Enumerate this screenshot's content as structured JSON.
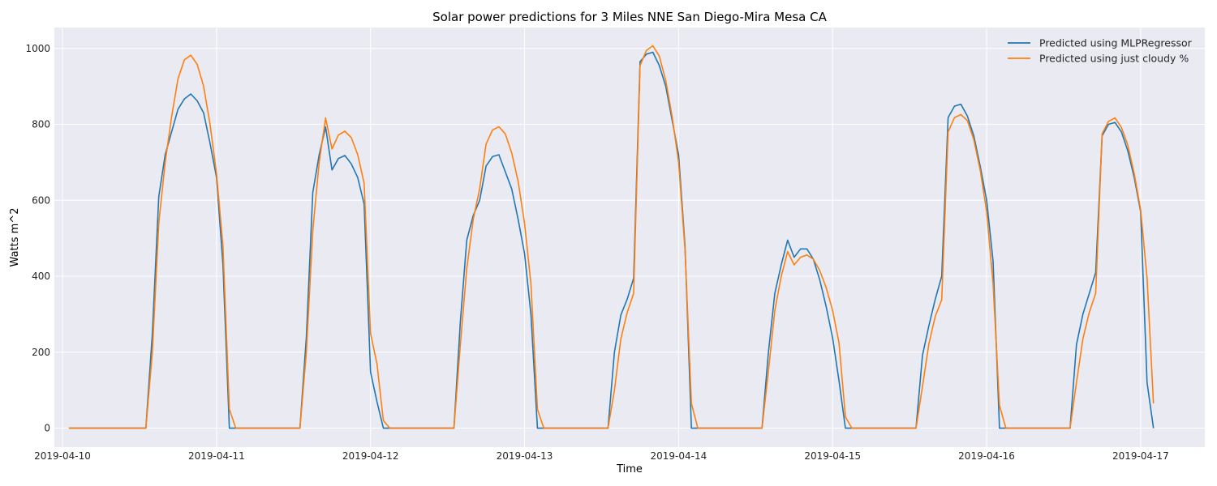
{
  "chart_data": {
    "type": "line",
    "title": "Solar power predictions for 3 Miles NNE San Diego-Mira Mesa CA",
    "xlabel": "Time",
    "ylabel": "Watts m^2",
    "xlim": [
      "2019-04-09T22:44",
      "2019-04-17T10:00"
    ],
    "ylim": [
      -50,
      1055
    ],
    "x_ticks": [
      "2019-04-10",
      "2019-04-11",
      "2019-04-12",
      "2019-04-13",
      "2019-04-14",
      "2019-04-15",
      "2019-04-16",
      "2019-04-17"
    ],
    "y_ticks": [
      0,
      200,
      400,
      600,
      800,
      1000
    ],
    "grid": true,
    "legend_position": "top-right",
    "style": {
      "background": "#eaeaf2",
      "grid_color": "#ffffff"
    },
    "series": [
      {
        "name": "Predicted using MLPRegressor",
        "color": "#1f77b4",
        "points": [
          [
            "2019-04-10T01:00",
            0
          ],
          [
            "2019-04-10T13:00",
            0
          ],
          [
            "2019-04-10T14:00",
            250
          ],
          [
            "2019-04-10T15:00",
            610
          ],
          [
            "2019-04-10T16:00",
            720
          ],
          [
            "2019-04-10T17:00",
            780
          ],
          [
            "2019-04-10T18:00",
            840
          ],
          [
            "2019-04-10T19:00",
            867
          ],
          [
            "2019-04-10T20:00",
            880
          ],
          [
            "2019-04-10T21:00",
            862
          ],
          [
            "2019-04-10T22:00",
            830
          ],
          [
            "2019-04-10T23:00",
            750
          ],
          [
            "2019-04-11T00:00",
            660
          ],
          [
            "2019-04-11T01:00",
            430
          ],
          [
            "2019-04-11T02:00",
            0
          ],
          [
            "2019-04-11T13:00",
            0
          ],
          [
            "2019-04-11T14:00",
            240
          ],
          [
            "2019-04-11T15:00",
            620
          ],
          [
            "2019-04-11T16:00",
            720
          ],
          [
            "2019-04-11T17:00",
            793
          ],
          [
            "2019-04-11T18:00",
            680
          ],
          [
            "2019-04-11T19:00",
            710
          ],
          [
            "2019-04-11T20:00",
            718
          ],
          [
            "2019-04-11T21:00",
            696
          ],
          [
            "2019-04-11T22:00",
            660
          ],
          [
            "2019-04-11T23:00",
            590
          ],
          [
            "2019-04-12T00:00",
            148
          ],
          [
            "2019-04-12T01:00",
            70
          ],
          [
            "2019-04-12T02:00",
            0
          ],
          [
            "2019-04-12T13:00",
            0
          ],
          [
            "2019-04-12T14:00",
            280
          ],
          [
            "2019-04-12T15:00",
            495
          ],
          [
            "2019-04-12T16:00",
            560
          ],
          [
            "2019-04-12T17:00",
            600
          ],
          [
            "2019-04-12T18:00",
            690
          ],
          [
            "2019-04-12T19:00",
            715
          ],
          [
            "2019-04-12T20:00",
            720
          ],
          [
            "2019-04-12T21:00",
            675
          ],
          [
            "2019-04-12T22:00",
            630
          ],
          [
            "2019-04-12T23:00",
            550
          ],
          [
            "2019-04-13T00:00",
            460
          ],
          [
            "2019-04-13T01:00",
            300
          ],
          [
            "2019-04-13T02:00",
            0
          ],
          [
            "2019-04-13T13:00",
            0
          ],
          [
            "2019-04-13T14:00",
            200
          ],
          [
            "2019-04-13T15:00",
            298
          ],
          [
            "2019-04-13T16:00",
            340
          ],
          [
            "2019-04-13T17:00",
            395
          ],
          [
            "2019-04-13T18:00",
            965
          ],
          [
            "2019-04-13T19:00",
            985
          ],
          [
            "2019-04-13T20:00",
            990
          ],
          [
            "2019-04-13T21:00",
            955
          ],
          [
            "2019-04-13T22:00",
            900
          ],
          [
            "2019-04-13T23:00",
            810
          ],
          [
            "2019-04-14T00:00",
            720
          ],
          [
            "2019-04-14T01:00",
            480
          ],
          [
            "2019-04-14T02:00",
            0
          ],
          [
            "2019-04-14T13:00",
            0
          ],
          [
            "2019-04-14T14:00",
            200
          ],
          [
            "2019-04-14T15:00",
            355
          ],
          [
            "2019-04-14T16:00",
            430
          ],
          [
            "2019-04-14T17:00",
            495
          ],
          [
            "2019-04-14T18:00",
            450
          ],
          [
            "2019-04-14T19:00",
            472
          ],
          [
            "2019-04-14T20:00",
            472
          ],
          [
            "2019-04-14T21:00",
            445
          ],
          [
            "2019-04-14T22:00",
            390
          ],
          [
            "2019-04-14T23:00",
            320
          ],
          [
            "2019-04-15T00:00",
            238
          ],
          [
            "2019-04-15T01:00",
            125
          ],
          [
            "2019-04-15T02:00",
            0
          ],
          [
            "2019-04-15T13:00",
            0
          ],
          [
            "2019-04-15T14:00",
            192
          ],
          [
            "2019-04-15T15:00",
            270
          ],
          [
            "2019-04-15T16:00",
            340
          ],
          [
            "2019-04-15T17:00",
            400
          ],
          [
            "2019-04-15T18:00",
            818
          ],
          [
            "2019-04-15T19:00",
            848
          ],
          [
            "2019-04-15T20:00",
            853
          ],
          [
            "2019-04-15T21:00",
            822
          ],
          [
            "2019-04-15T22:00",
            770
          ],
          [
            "2019-04-15T23:00",
            690
          ],
          [
            "2019-04-16T00:00",
            600
          ],
          [
            "2019-04-16T01:00",
            440
          ],
          [
            "2019-04-16T02:00",
            0
          ],
          [
            "2019-04-16T13:00",
            0
          ],
          [
            "2019-04-16T14:00",
            220
          ],
          [
            "2019-04-16T15:00",
            300
          ],
          [
            "2019-04-16T16:00",
            355
          ],
          [
            "2019-04-16T17:00",
            410
          ],
          [
            "2019-04-16T18:00",
            770
          ],
          [
            "2019-04-16T19:00",
            800
          ],
          [
            "2019-04-16T20:00",
            805
          ],
          [
            "2019-04-16T21:00",
            780
          ],
          [
            "2019-04-16T22:00",
            730
          ],
          [
            "2019-04-16T23:00",
            660
          ],
          [
            "2019-04-17T00:00",
            570
          ],
          [
            "2019-04-17T01:00",
            120
          ],
          [
            "2019-04-17T02:00",
            0
          ]
        ]
      },
      {
        "name": "Predicted using just cloudy %",
        "color": "#ff7f0e",
        "points": [
          [
            "2019-04-10T01:00",
            0
          ],
          [
            "2019-04-10T13:00",
            0
          ],
          [
            "2019-04-10T14:00",
            200
          ],
          [
            "2019-04-10T15:00",
            540
          ],
          [
            "2019-04-10T16:00",
            700
          ],
          [
            "2019-04-10T17:00",
            820
          ],
          [
            "2019-04-10T18:00",
            920
          ],
          [
            "2019-04-10T19:00",
            970
          ],
          [
            "2019-04-10T20:00",
            982
          ],
          [
            "2019-04-10T21:00",
            958
          ],
          [
            "2019-04-10T22:00",
            900
          ],
          [
            "2019-04-10T23:00",
            800
          ],
          [
            "2019-04-11T00:00",
            670
          ],
          [
            "2019-04-11T01:00",
            480
          ],
          [
            "2019-04-11T02:00",
            50
          ],
          [
            "2019-04-11T03:00",
            0
          ],
          [
            "2019-04-11T13:00",
            0
          ],
          [
            "2019-04-11T14:00",
            200
          ],
          [
            "2019-04-11T15:00",
            520
          ],
          [
            "2019-04-11T16:00",
            700
          ],
          [
            "2019-04-11T17:00",
            817
          ],
          [
            "2019-04-11T18:00",
            735
          ],
          [
            "2019-04-11T19:00",
            772
          ],
          [
            "2019-04-11T20:00",
            782
          ],
          [
            "2019-04-11T21:00",
            765
          ],
          [
            "2019-04-11T22:00",
            720
          ],
          [
            "2019-04-11T23:00",
            645
          ],
          [
            "2019-04-12T00:00",
            250
          ],
          [
            "2019-04-12T01:00",
            170
          ],
          [
            "2019-04-12T02:00",
            20
          ],
          [
            "2019-04-12T03:00",
            0
          ],
          [
            "2019-04-12T13:00",
            0
          ],
          [
            "2019-04-12T14:00",
            220
          ],
          [
            "2019-04-12T15:00",
            420
          ],
          [
            "2019-04-12T16:00",
            550
          ],
          [
            "2019-04-12T17:00",
            630
          ],
          [
            "2019-04-12T18:00",
            748
          ],
          [
            "2019-04-12T19:00",
            785
          ],
          [
            "2019-04-12T20:00",
            794
          ],
          [
            "2019-04-12T21:00",
            775
          ],
          [
            "2019-04-12T22:00",
            725
          ],
          [
            "2019-04-12T23:00",
            650
          ],
          [
            "2019-04-13T00:00",
            540
          ],
          [
            "2019-04-13T01:00",
            380
          ],
          [
            "2019-04-13T02:00",
            50
          ],
          [
            "2019-04-13T03:00",
            0
          ],
          [
            "2019-04-13T13:00",
            0
          ],
          [
            "2019-04-13T14:00",
            100
          ],
          [
            "2019-04-13T15:00",
            235
          ],
          [
            "2019-04-13T16:00",
            305
          ],
          [
            "2019-04-13T17:00",
            355
          ],
          [
            "2019-04-13T18:00",
            955
          ],
          [
            "2019-04-13T19:00",
            995
          ],
          [
            "2019-04-13T20:00",
            1007
          ],
          [
            "2019-04-13T21:00",
            980
          ],
          [
            "2019-04-13T22:00",
            915
          ],
          [
            "2019-04-13T23:00",
            820
          ],
          [
            "2019-04-14T00:00",
            700
          ],
          [
            "2019-04-14T01:00",
            470
          ],
          [
            "2019-04-14T02:00",
            65
          ],
          [
            "2019-04-14T03:00",
            0
          ],
          [
            "2019-04-14T13:00",
            0
          ],
          [
            "2019-04-14T14:00",
            150
          ],
          [
            "2019-04-14T15:00",
            310
          ],
          [
            "2019-04-14T16:00",
            400
          ],
          [
            "2019-04-14T17:00",
            465
          ],
          [
            "2019-04-14T18:00",
            430
          ],
          [
            "2019-04-14T19:00",
            450
          ],
          [
            "2019-04-14T20:00",
            456
          ],
          [
            "2019-04-14T21:00",
            445
          ],
          [
            "2019-04-14T22:00",
            415
          ],
          [
            "2019-04-14T23:00",
            370
          ],
          [
            "2019-04-15T00:00",
            310
          ],
          [
            "2019-04-15T01:00",
            225
          ],
          [
            "2019-04-15T02:00",
            30
          ],
          [
            "2019-04-15T03:00",
            0
          ],
          [
            "2019-04-15T13:00",
            0
          ],
          [
            "2019-04-15T14:00",
            110
          ],
          [
            "2019-04-15T15:00",
            222
          ],
          [
            "2019-04-15T16:00",
            295
          ],
          [
            "2019-04-15T17:00",
            338
          ],
          [
            "2019-04-15T18:00",
            780
          ],
          [
            "2019-04-15T19:00",
            818
          ],
          [
            "2019-04-15T20:00",
            826
          ],
          [
            "2019-04-15T21:00",
            810
          ],
          [
            "2019-04-15T22:00",
            760
          ],
          [
            "2019-04-15T23:00",
            680
          ],
          [
            "2019-04-16T00:00",
            570
          ],
          [
            "2019-04-16T01:00",
            380
          ],
          [
            "2019-04-16T02:00",
            60
          ],
          [
            "2019-04-16T03:00",
            0
          ],
          [
            "2019-04-16T13:00",
            0
          ],
          [
            "2019-04-16T14:00",
            120
          ],
          [
            "2019-04-16T15:00",
            235
          ],
          [
            "2019-04-16T16:00",
            305
          ],
          [
            "2019-04-16T17:00",
            355
          ],
          [
            "2019-04-16T18:00",
            775
          ],
          [
            "2019-04-16T19:00",
            808
          ],
          [
            "2019-04-16T20:00",
            817
          ],
          [
            "2019-04-16T21:00",
            792
          ],
          [
            "2019-04-16T22:00",
            745
          ],
          [
            "2019-04-16T23:00",
            670
          ],
          [
            "2019-04-17T00:00",
            575
          ],
          [
            "2019-04-17T01:00",
            395
          ],
          [
            "2019-04-17T02:00",
            65
          ]
        ]
      }
    ]
  }
}
